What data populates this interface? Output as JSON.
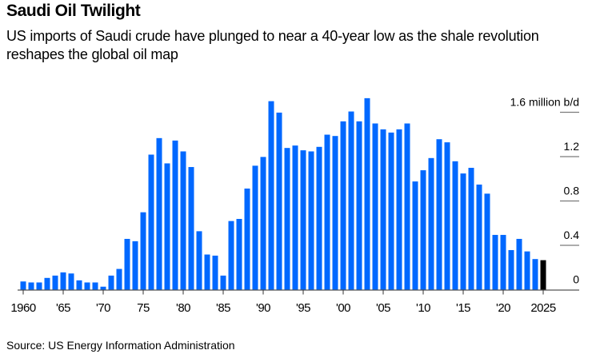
{
  "header": {
    "title": "Saudi Oil Twilight",
    "subtitle": "US imports of Saudi crude have plunged to near a 40-year low as the shale revolution reshapes the global oil map"
  },
  "footer": {
    "source": "Source: US Energy Information Administration"
  },
  "colors": {
    "bar": "#0068FF",
    "highlight_bar": "#000000",
    "gridline": "#7a7a7a",
    "axis": "#555555"
  },
  "chart_data": {
    "type": "bar",
    "title": "Saudi Oil Twilight",
    "subtitle": "US imports of Saudi crude have plunged to near a 40-year low as the shale revolution reshapes the global oil map",
    "xlabel": "",
    "ylabel": "million b/d",
    "ylim": [
      0,
      1.6
    ],
    "yticks": [
      0,
      0.4,
      0.8,
      1.2,
      1.6
    ],
    "ytick_labels": [
      "0",
      "0.4",
      "0.8",
      "1.2",
      "1.6 million b/d"
    ],
    "xticks": [
      1960,
      1965,
      1970,
      1975,
      1980,
      1985,
      1990,
      1995,
      2000,
      2005,
      2010,
      2015,
      2020,
      2025
    ],
    "xtick_labels": [
      "1960",
      "'65",
      "'70",
      "75",
      "'80",
      "'85",
      "'90",
      "'95",
      "'00",
      "'05",
      "'10",
      "'15",
      "'20",
      "2025"
    ],
    "grid": true,
    "legend": "none",
    "highlight": 2025,
    "x": [
      1960,
      1961,
      1962,
      1963,
      1964,
      1965,
      1966,
      1967,
      1968,
      1969,
      1970,
      1971,
      1972,
      1973,
      1974,
      1975,
      1976,
      1977,
      1978,
      1979,
      1980,
      1981,
      1982,
      1983,
      1984,
      1985,
      1986,
      1987,
      1988,
      1989,
      1990,
      1991,
      1992,
      1993,
      1994,
      1995,
      1996,
      1997,
      1998,
      1999,
      2000,
      2001,
      2002,
      2003,
      2004,
      2005,
      2006,
      2007,
      2008,
      2009,
      2010,
      2011,
      2012,
      2013,
      2014,
      2015,
      2016,
      2017,
      2018,
      2019,
      2020,
      2021,
      2022,
      2023,
      2024,
      2025
    ],
    "values": [
      0.074,
      0.065,
      0.065,
      0.106,
      0.127,
      0.156,
      0.146,
      0.084,
      0.065,
      0.065,
      0.027,
      0.127,
      0.187,
      0.458,
      0.437,
      0.698,
      1.218,
      1.367,
      1.139,
      1.345,
      1.247,
      1.106,
      0.527,
      0.317,
      0.307,
      0.127,
      0.619,
      0.638,
      0.912,
      1.118,
      1.197,
      1.7,
      1.597,
      1.278,
      1.3,
      1.257,
      1.247,
      1.288,
      1.398,
      1.386,
      1.518,
      1.607,
      1.518,
      1.727,
      1.499,
      1.446,
      1.417,
      1.446,
      1.499,
      0.976,
      1.077,
      1.187,
      1.357,
      1.329,
      1.158,
      1.048,
      1.099,
      0.948,
      0.866,
      0.494,
      0.494,
      0.357,
      0.458,
      0.345,
      0.276,
      0.266
    ]
  }
}
